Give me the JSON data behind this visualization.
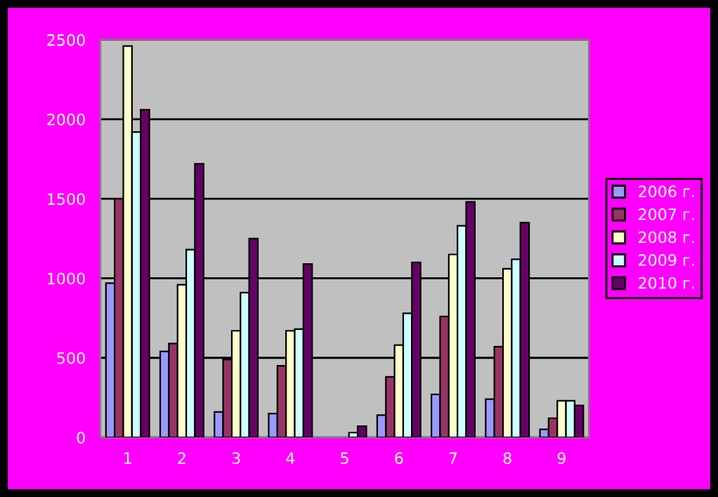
{
  "chart_data": {
    "type": "bar",
    "categories": [
      "1",
      "2",
      "3",
      "4",
      "5",
      "6",
      "7",
      "8",
      "9"
    ],
    "series": [
      {
        "name": "2006 г.",
        "color": "#9999ff",
        "values": [
          970,
          540,
          160,
          150,
          0,
          140,
          270,
          240,
          50
        ]
      },
      {
        "name": "2007 г.",
        "color": "#993366",
        "values": [
          1500,
          590,
          490,
          450,
          0,
          380,
          760,
          570,
          120
        ]
      },
      {
        "name": "2008 г.",
        "color": "#ffffcc",
        "values": [
          2460,
          960,
          670,
          670,
          0,
          580,
          1150,
          1060,
          230
        ]
      },
      {
        "name": "2009 г.",
        "color": "#ccffff",
        "values": [
          1920,
          1180,
          910,
          680,
          30,
          780,
          1330,
          1120,
          230
        ]
      },
      {
        "name": "2010 г.",
        "color": "#660066",
        "values": [
          2060,
          1720,
          1250,
          1090,
          70,
          1100,
          1480,
          1350,
          200
        ]
      }
    ],
    "ylim": [
      0,
      2500
    ],
    "yticks": [
      0,
      500,
      1000,
      1500,
      2000,
      2500
    ],
    "grid": "y",
    "legend": "right"
  }
}
